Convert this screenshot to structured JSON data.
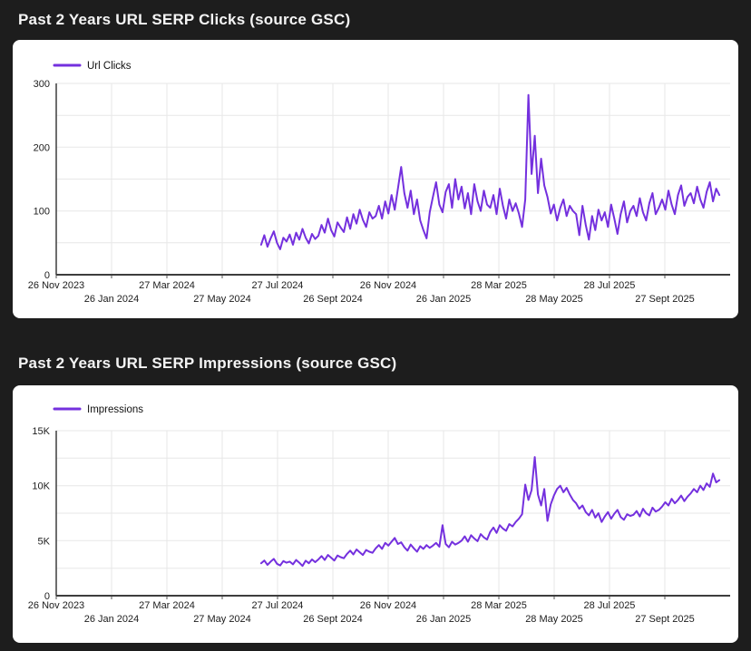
{
  "page": {
    "background": "#1d1d1d",
    "card_background": "#ffffff",
    "title_color": "#f4f4f4",
    "grid_color": "#e7e7e7",
    "axis_color": "#3d3d3d",
    "tick_text_color": "#1c1c1c"
  },
  "chart_data": [
    {
      "type": "line",
      "title": "Past 2 Years URL SERP Clicks (source GSC)",
      "legend": "Url Clicks",
      "line_color": "#7430de",
      "xlabel": "",
      "ylabel": "",
      "ylim": [
        0,
        300
      ],
      "grid_step": 50,
      "legend_position": "top-left",
      "grid": true,
      "y_major_ticks": [
        {
          "v": 0,
          "label": "0"
        },
        {
          "v": 100,
          "label": "100"
        },
        {
          "v": 200,
          "label": "200"
        },
        {
          "v": 300,
          "label": "300"
        }
      ],
      "x_tick_labels": [
        "26 Nov 2023",
        "26 Jan 2024",
        "27 Mar 2024",
        "27 May 2024",
        "27 Jul 2024",
        "26 Sept 2024",
        "26 Nov 2024",
        "26 Jan 2025",
        "28 Mar 2025",
        "28 May 2025",
        "28 Jul 2025",
        "27 Sept 2025"
      ],
      "x_axis_start": "26 Nov 2023",
      "data_start_frac": 0.304,
      "data_end_frac": 0.984,
      "values": [
        47,
        62,
        44,
        57,
        68,
        50,
        40,
        58,
        52,
        63,
        47,
        66,
        55,
        72,
        58,
        49,
        64,
        56,
        61,
        78,
        66,
        88,
        70,
        60,
        82,
        74,
        67,
        90,
        72,
        95,
        80,
        102,
        86,
        75,
        98,
        88,
        92,
        108,
        88,
        115,
        96,
        125,
        102,
        135,
        169,
        128,
        105,
        132,
        95,
        118,
        85,
        70,
        57,
        98,
        122,
        145,
        110,
        98,
        130,
        142,
        105,
        150,
        118,
        138,
        104,
        128,
        95,
        142,
        115,
        100,
        132,
        110,
        105,
        125,
        95,
        135,
        108,
        88,
        118,
        100,
        112,
        96,
        75,
        118,
        282,
        158,
        218,
        128,
        182,
        140,
        122,
        96,
        110,
        85,
        105,
        118,
        92,
        108,
        100,
        95,
        62,
        108,
        78,
        55,
        92,
        70,
        102,
        85,
        98,
        75,
        110,
        88,
        64,
        95,
        115,
        82,
        100,
        108,
        92,
        120,
        98,
        85,
        112,
        128,
        95,
        105,
        118,
        102,
        132,
        110,
        95,
        125,
        140,
        108,
        122,
        128,
        112,
        138,
        118,
        105,
        130,
        145,
        115,
        135,
        125
      ]
    },
    {
      "type": "line",
      "title": "Past 2 Years URL SERP Impressions (source GSC)",
      "legend": "Impressions",
      "line_color": "#7430de",
      "xlabel": "",
      "ylabel": "",
      "ylim": [
        0,
        15000
      ],
      "grid_step": 2500,
      "legend_position": "top-left",
      "grid": true,
      "y_major_ticks": [
        {
          "v": 0,
          "label": "0"
        },
        {
          "v": 5000,
          "label": "5K"
        },
        {
          "v": 10000,
          "label": "10K"
        },
        {
          "v": 15000,
          "label": "15K"
        }
      ],
      "x_tick_labels": [
        "26 Nov 2023",
        "26 Jan 2024",
        "27 Mar 2024",
        "27 May 2024",
        "27 Jul 2024",
        "26 Sept 2024",
        "26 Nov 2024",
        "26 Jan 2025",
        "28 Mar 2025",
        "28 May 2025",
        "28 Jul 2025",
        "27 Sept 2025"
      ],
      "x_axis_start": "26 Nov 2023",
      "data_start_frac": 0.304,
      "data_end_frac": 0.984,
      "values": [
        2950,
        3200,
        2800,
        3100,
        3350,
        2900,
        2750,
        3150,
        3000,
        3100,
        2850,
        3250,
        3000,
        2700,
        3180,
        2950,
        3300,
        3050,
        3300,
        3600,
        3250,
        3700,
        3450,
        3200,
        3650,
        3500,
        3400,
        3800,
        4100,
        3750,
        4200,
        3950,
        3700,
        4150,
        4000,
        3900,
        4300,
        4600,
        4250,
        4800,
        4550,
        4900,
        5250,
        4700,
        4850,
        4400,
        4100,
        4650,
        4300,
        4000,
        4500,
        4250,
        4600,
        4350,
        4550,
        4800,
        4450,
        6400,
        4700,
        4400,
        4900,
        4650,
        4800,
        5000,
        5400,
        4900,
        5500,
        5200,
        4950,
        5600,
        5300,
        5100,
        5800,
        6200,
        5700,
        6400,
        6100,
        5900,
        6500,
        6300,
        6700,
        7000,
        7400,
        10100,
        8700,
        9600,
        12600,
        9200,
        8200,
        9700,
        6800,
        8300,
        9100,
        9700,
        10000,
        9400,
        9800,
        9200,
        8700,
        8400,
        7900,
        8200,
        7600,
        7300,
        7800,
        7100,
        7500,
        6700,
        7200,
        7600,
        7000,
        7450,
        7800,
        7150,
        6900,
        7400,
        7250,
        7350,
        7700,
        7200,
        7900,
        7500,
        7300,
        8000,
        7650,
        7800,
        8100,
        8500,
        8200,
        8800,
        8400,
        8700,
        9100,
        8600,
        9000,
        9300,
        9700,
        9400,
        10000,
        9600,
        10200,
        9900,
        11100,
        10300,
        10500
      ]
    }
  ]
}
